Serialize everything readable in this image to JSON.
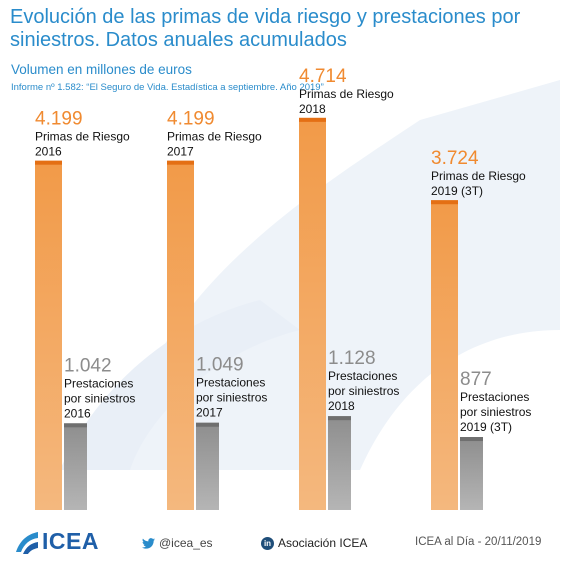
{
  "title": "Evolución de las primas de vida riesgo y prestaciones por siniestros. Datos anuales acumulados",
  "subtitle": "Volumen en millones de euros",
  "source": "Informe nº 1.582: “El Seguro de Vida. Estadística a septiembre. Año 2019”",
  "colors": {
    "accent": "#2a8ccb",
    "primas": "#f08a30",
    "prestaciones": "#8c8c8c",
    "logo": "#1f5fa8"
  },
  "chart_data": {
    "type": "bar",
    "title": "Evolución de las primas de vida riesgo y prestaciones por siniestros. Datos anuales acumulados",
    "ylim": [
      0,
      5000
    ],
    "grid": false,
    "groups": [
      {
        "primas_value": 4199,
        "primas_display": "4.199",
        "primas_label": [
          "Primas de Riesgo",
          "2016"
        ],
        "prest_value": 1042,
        "prest_display": "1.042",
        "prest_label": [
          "Prestaciones",
          "por siniestros",
          "2016"
        ]
      },
      {
        "primas_value": 4199,
        "primas_display": "4.199",
        "primas_label": [
          "Primas de Riesgo",
          "2017"
        ],
        "prest_value": 1049,
        "prest_display": "1.049",
        "prest_label": [
          "Prestaciones",
          "por siniestros",
          "2017"
        ]
      },
      {
        "primas_value": 4714,
        "primas_display": "4.714",
        "primas_label": [
          "Primas de Riesgo",
          "2018"
        ],
        "prest_value": 1128,
        "prest_display": "1.128",
        "prest_label": [
          "Prestaciones",
          "por siniestros",
          "2018"
        ]
      },
      {
        "primas_value": 3724,
        "primas_display": "3.724",
        "primas_label": [
          "Primas de Riesgo",
          "2019 (3T)"
        ],
        "prest_value": 877,
        "prest_display": "877",
        "prest_label": [
          "Prestaciones",
          "por siniestros",
          "2019 (3T)"
        ]
      }
    ]
  },
  "footer": {
    "logo_text": "ICEA",
    "twitter_icon": "twitter-bird-icon",
    "twitter_handle": "@icea_es",
    "linkedin_icon": "linkedin-icon",
    "linkedin_label": "Asociación ICEA",
    "date": "ICEA al Día - 20/11/2019"
  }
}
